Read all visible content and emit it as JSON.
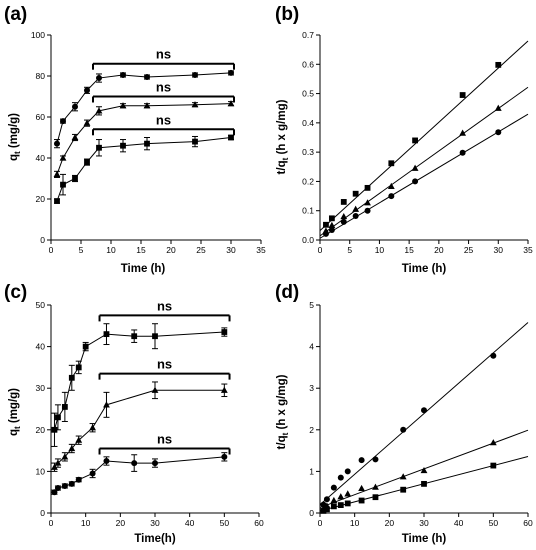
{
  "chart_data": [
    {
      "panel": "(a)",
      "type": "scatter",
      "xlabel": "Time (h)",
      "ylabel": "q_t (mg/g)",
      "ylabel_main": "q",
      "ylabel_sub": "t",
      "ylabel_rest": " (mg/g)",
      "xlim": [
        0,
        35
      ],
      "ylim": [
        0,
        100
      ],
      "xticks": [
        "0",
        "5",
        "10",
        "15",
        "20",
        "25",
        "30",
        "35"
      ],
      "yticks": [
        "0",
        "20",
        "40",
        "60",
        "80",
        "100"
      ],
      "annotations": [
        "ns",
        "ns",
        "ns"
      ],
      "series": [
        {
          "marker": "circle",
          "x": [
            1,
            2,
            4,
            6,
            8,
            12,
            16,
            24,
            30
          ],
          "y": [
            47,
            58,
            65,
            73,
            79,
            80.5,
            79.5,
            80.5,
            81.5
          ],
          "err": [
            2,
            1,
            2,
            1.5,
            2,
            1,
            1,
            1,
            1
          ]
        },
        {
          "marker": "triangle",
          "x": [
            1,
            2,
            4,
            6,
            8,
            12,
            16,
            24,
            30
          ],
          "y": [
            32,
            40,
            50,
            57,
            63,
            65.5,
            65.5,
            66,
            66.5
          ],
          "err": [
            1.5,
            1,
            1.5,
            1.5,
            2,
            1,
            1,
            1,
            1
          ]
        },
        {
          "marker": "square",
          "x": [
            1,
            2,
            4,
            6,
            8,
            12,
            16,
            24,
            30
          ],
          "y": [
            19,
            27,
            30,
            38,
            45,
            46,
            47,
            48,
            50
          ],
          "err": [
            1,
            5,
            1.5,
            1.5,
            4,
            3,
            3,
            2.5,
            1
          ]
        }
      ],
      "brackets": [
        {
          "y": 86,
          "x0": 7,
          "x1": 30.5
        },
        {
          "y": 70,
          "x0": 7,
          "x1": 30.5
        },
        {
          "y": 54,
          "x0": 7,
          "x1": 30.5
        }
      ]
    },
    {
      "panel": "(b)",
      "type": "scatter",
      "xlabel": "Time (h)",
      "ylabel": "t/q_t (h x g/mg)",
      "ylabel_main": "t/q",
      "ylabel_sub": "t",
      "ylabel_rest": " (h x g/mg)",
      "xlim": [
        0,
        35
      ],
      "ylim": [
        0,
        0.7
      ],
      "xticks": [
        "0",
        "5",
        "10",
        "15",
        "20",
        "25",
        "30",
        "35"
      ],
      "yticks": [
        "0.0",
        "0.1",
        "0.2",
        "0.3",
        "0.4",
        "0.5",
        "0.6",
        "0.7"
      ],
      "series": [
        {
          "marker": "square",
          "x": [
            1,
            2,
            4,
            6,
            8,
            12,
            16,
            24,
            30
          ],
          "y": [
            0.052,
            0.074,
            0.13,
            0.158,
            0.178,
            0.262,
            0.34,
            0.495,
            0.598
          ],
          "line": [
            0.032,
            0.0185
          ]
        },
        {
          "marker": "triangle",
          "x": [
            1,
            2,
            4,
            6,
            8,
            12,
            16,
            24,
            30
          ],
          "y": [
            0.031,
            0.05,
            0.08,
            0.105,
            0.127,
            0.183,
            0.245,
            0.365,
            0.45
          ],
          "line": [
            0.014,
            0.0145
          ]
        },
        {
          "marker": "circle",
          "x": [
            1,
            2,
            4,
            6,
            8,
            12,
            16,
            24,
            30
          ],
          "y": [
            0.021,
            0.034,
            0.062,
            0.082,
            0.1,
            0.15,
            0.2,
            0.298,
            0.368
          ],
          "line": [
            0.006,
            0.0121
          ]
        }
      ]
    },
    {
      "panel": "(c)",
      "type": "scatter",
      "xlabel": "Time(h)",
      "ylabel": "q_t (mg/g)",
      "ylabel_main": "q",
      "ylabel_sub": "t",
      "ylabel_rest": " (mg/g)",
      "xlim": [
        0,
        60
      ],
      "ylim": [
        0,
        50
      ],
      "xticks": [
        "0",
        "10",
        "20",
        "30",
        "40",
        "50",
        "60"
      ],
      "yticks": [
        "0",
        "10",
        "20",
        "30",
        "40",
        "50"
      ],
      "annotations": [
        "ns",
        "ns",
        "ns"
      ],
      "series": [
        {
          "marker": "square",
          "x": [
            1,
            2,
            4,
            6,
            8,
            10,
            16,
            24,
            30,
            50
          ],
          "y": [
            20,
            23,
            25.5,
            32.5,
            35,
            40,
            43,
            42.5,
            42.5,
            43.5
          ],
          "err": [
            4,
            3,
            3.5,
            3,
            1.5,
            1,
            2.5,
            1.5,
            3,
            1
          ]
        },
        {
          "marker": "triangle",
          "x": [
            1,
            2,
            4,
            6,
            8,
            12,
            16,
            30,
            50
          ],
          "y": [
            11,
            12,
            13.5,
            15.5,
            17.5,
            20.5,
            26,
            29.5,
            29.5
          ],
          "err": [
            1,
            1,
            1,
            1,
            1,
            1,
            3,
            2,
            1.5
          ]
        },
        {
          "marker": "circle",
          "x": [
            1,
            2,
            4,
            6,
            8,
            12,
            16,
            24,
            30,
            50
          ],
          "y": [
            5,
            6,
            6.5,
            7,
            8,
            9.5,
            12.5,
            12,
            12,
            13.5
          ],
          "err": [
            0.5,
            0.5,
            0.5,
            0.5,
            0.5,
            1,
            1,
            2,
            1,
            1
          ]
        }
      ],
      "brackets": [
        {
          "y": 47.5,
          "x0": 14,
          "x1": 51.5
        },
        {
          "y": 33.5,
          "x0": 14,
          "x1": 51.5
        },
        {
          "y": 15.5,
          "x0": 14,
          "x1": 51.5
        }
      ]
    },
    {
      "panel": "(d)",
      "type": "scatter",
      "xlabel": "Time (h)",
      "ylabel": "t/q_t (h x g/mg)",
      "ylabel_main": "t/q",
      "ylabel_sub": "t",
      "ylabel_rest": " (h x g/mg)",
      "xlim": [
        0,
        60
      ],
      "ylim": [
        0,
        5
      ],
      "xticks": [
        "0",
        "10",
        "20",
        "30",
        "40",
        "50",
        "60"
      ],
      "yticks": [
        "0",
        "1",
        "2",
        "3",
        "4",
        "5"
      ],
      "series": [
        {
          "marker": "circle",
          "x": [
            1,
            2,
            4,
            6,
            8,
            12,
            16,
            24,
            30,
            50
          ],
          "y": [
            0.2,
            0.33,
            0.61,
            0.85,
            1.0,
            1.27,
            1.29,
            2.0,
            2.47,
            3.78
          ],
          "line": [
            0.2,
            0.073
          ]
        },
        {
          "marker": "triangle",
          "x": [
            1,
            2,
            4,
            6,
            8,
            12,
            16,
            24,
            30,
            50
          ],
          "y": [
            0.1,
            0.17,
            0.3,
            0.39,
            0.46,
            0.59,
            0.62,
            0.87,
            1.02,
            1.69
          ],
          "line": [
            0.13,
            0.031
          ]
        },
        {
          "marker": "square",
          "x": [
            1,
            2,
            4,
            6,
            8,
            12,
            16,
            24,
            30,
            50
          ],
          "y": [
            0.05,
            0.09,
            0.16,
            0.19,
            0.23,
            0.3,
            0.38,
            0.56,
            0.7,
            1.14
          ],
          "line": [
            0.05,
            0.0218
          ]
        }
      ]
    }
  ]
}
